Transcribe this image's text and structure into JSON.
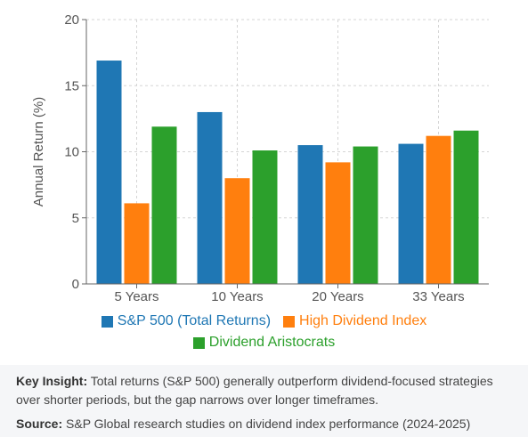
{
  "chart_data": {
    "type": "bar",
    "categories": [
      "5 Years",
      "10 Years",
      "20 Years",
      "33 Years"
    ],
    "series": [
      {
        "name": "S&P 500 (Total Returns)",
        "values": [
          16.9,
          13.0,
          10.5,
          10.6
        ],
        "color": "#1f77b4"
      },
      {
        "name": "High Dividend Index",
        "values": [
          6.1,
          8.0,
          9.2,
          11.2
        ],
        "color": "#ff7f0e"
      },
      {
        "name": "Dividend Aristocrats",
        "values": [
          11.9,
          10.1,
          10.4,
          11.6
        ],
        "color": "#2ca02c"
      }
    ],
    "title": "",
    "xlabel": "",
    "ylabel": "Annual Return (%)",
    "ylim": [
      0,
      20
    ],
    "yticks": [
      "0",
      "5",
      "10",
      "15",
      "20"
    ],
    "grid": true,
    "legend_position": "bottom"
  },
  "notes": {
    "insight_label": "Key Insight:",
    "insight_text": " Total returns (S&P 500) generally outperform dividend-focused strategies over shorter periods, but the gap narrows over longer timeframes.",
    "source_label": "Source:",
    "source_text": " S&P Global research studies on dividend index performance (2024-2025)"
  }
}
